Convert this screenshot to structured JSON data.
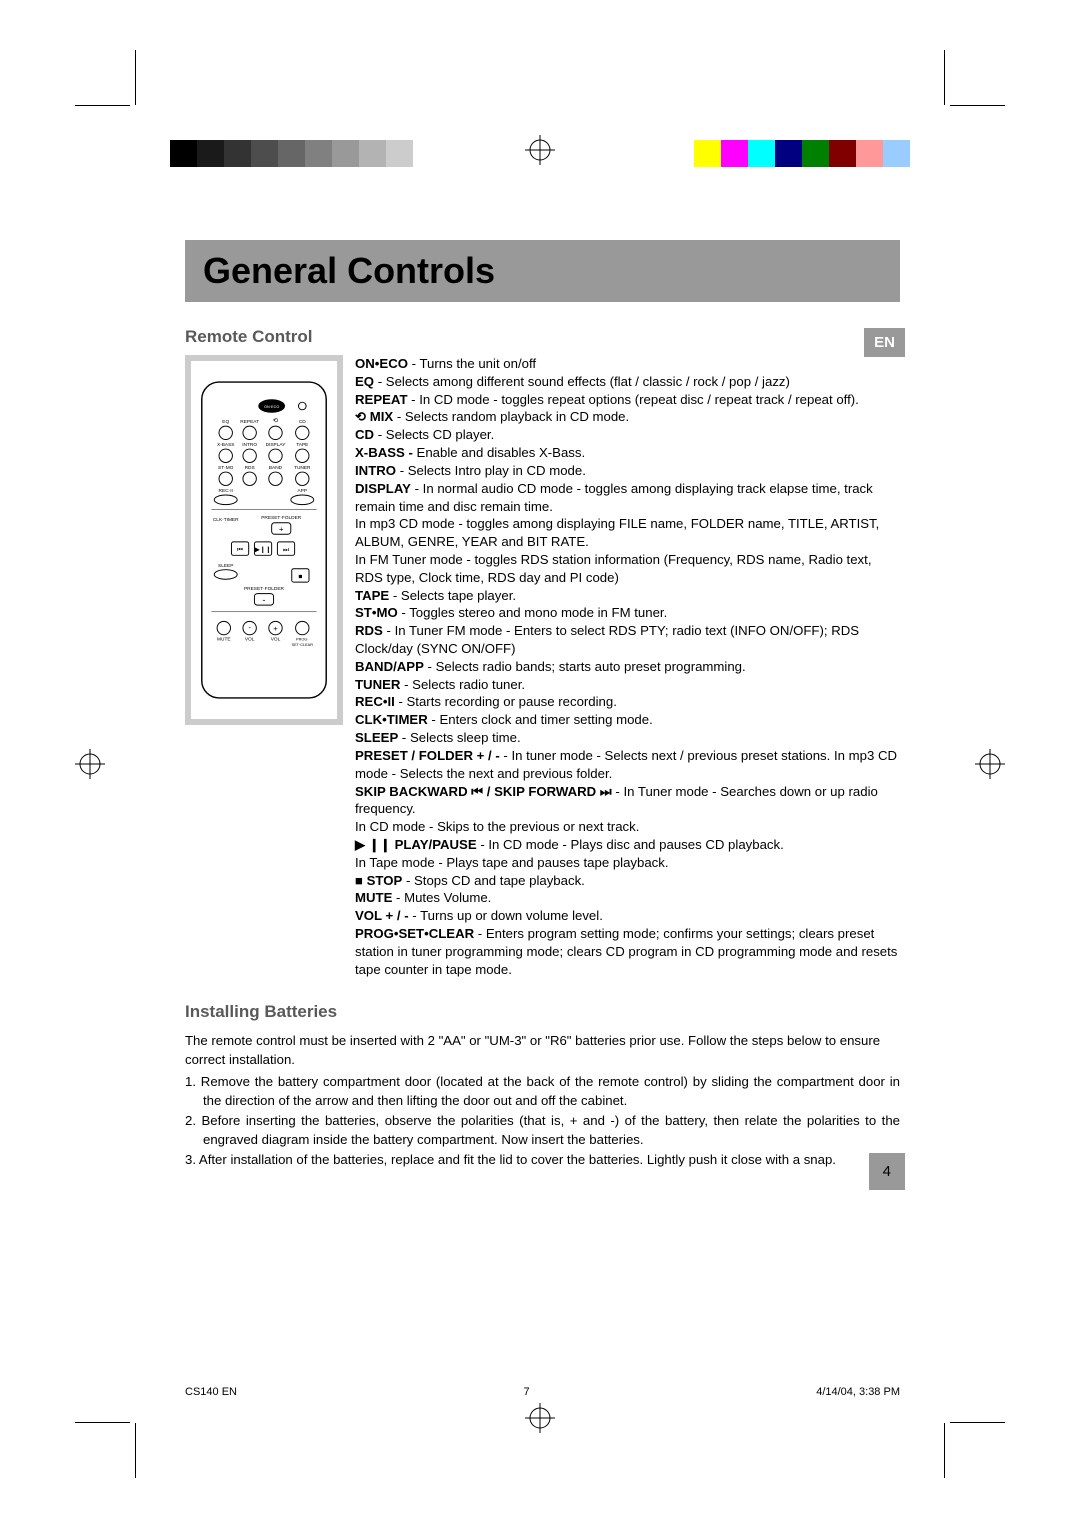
{
  "page": {
    "title": "General Controls",
    "lang_tab": "EN",
    "page_number": "4"
  },
  "colors": {
    "title_bar_bg": "#999999",
    "section_title": "#595959",
    "left_swatches": [
      "#000000",
      "#1a1a1a",
      "#333333",
      "#4d4d4d",
      "#666666",
      "#808080",
      "#999999",
      "#b3b3b3",
      "#cccccc"
    ],
    "right_swatches": [
      "#ffff00",
      "#ff00ff",
      "#00ffff",
      "#000080",
      "#008000",
      "#800000",
      "#ff9999",
      "#99ccff"
    ]
  },
  "sections": {
    "remote": {
      "title": "Remote Control",
      "items": [
        {
          "label": "ON•ECO",
          "text": " - Turns the unit on/off"
        },
        {
          "label": "EQ",
          "text": " - Selects among different sound effects (flat / classic / rock / pop / jazz)"
        },
        {
          "label": "REPEAT",
          "text": " - In CD mode - toggles repeat options (repeat disc / repeat track / repeat off)."
        },
        {
          "label": "⟲ MIX",
          "text": " - Selects random playback in CD mode."
        },
        {
          "label": "CD",
          "text": " - Selects CD player."
        },
        {
          "label": "X-BASS - ",
          "text": "Enable and disables X-Bass."
        },
        {
          "label": "INTRO",
          "text": " - Selects Intro play in CD mode."
        },
        {
          "label": "DISPLAY",
          "text": " - In normal audio CD mode   - toggles among displaying track elapse time, track remain time and disc remain time."
        },
        {
          "label": "",
          "text": "In mp3 CD mode - toggles among displaying FILE name, FOLDER name, TITLE, ARTIST, ALBUM, GENRE, YEAR and BIT RATE."
        },
        {
          "label": "",
          "text": "In FM Tuner mode   - toggles RDS station information (Frequency, RDS name, Radio text, RDS type, Clock time, RDS day and PI code)"
        },
        {
          "label": "TAPE",
          "text": " - Selects tape player."
        },
        {
          "label": "ST•MO",
          "text": " - Toggles stereo and mono mode in FM tuner."
        },
        {
          "label": "RDS",
          "text": " - In Tuner FM mode  - Enters to select RDS PTY; radio text (INFO ON/OFF); RDS Clock/day (SYNC ON/OFF)"
        },
        {
          "label": "BAND/APP",
          "text": " - Selects radio bands; starts auto preset programming."
        },
        {
          "label": "TUNER",
          "text": " - Selects radio tuner."
        },
        {
          "label": "REC•II",
          "text": " - Starts recording or pause recording."
        },
        {
          "label": "CLK•TIMER",
          "text": " - Enters clock and timer setting mode."
        },
        {
          "label": "SLEEP",
          "text": " - Selects sleep time."
        },
        {
          "label": "PRESET / FOLDER + / -",
          "text": " - In tuner mode   - Selects next / previous preset stations. In mp3 CD mode  - Selects the next and previous folder."
        },
        {
          "label": "SKIP BACKWARD ⏮ / SKIP FORWARD ⏭ ",
          "text": " - In Tuner mode  - Searches down or up radio frequency."
        },
        {
          "label": "",
          "text": "In CD mode - Skips to the previous or next track."
        },
        {
          "label": "▶ ❙❙ PLAY/PAUSE",
          "text": " - In CD mode - Plays disc and pauses CD playback."
        },
        {
          "label": "",
          "text": "In Tape mode  - Plays tape and pauses tape playback."
        },
        {
          "label": "■ STOP",
          "text": " - Stops CD and tape playback."
        },
        {
          "label": "MUTE",
          "text": " - Mutes Volume."
        },
        {
          "label": "VOL + / -",
          "text": " - Turns up or down volume level."
        },
        {
          "label": "PROG•SET•CLEAR",
          "text": " - Enters program setting mode; confirms your settings; clears preset station in tuner programming mode; clears CD program in CD programming mode and resets tape counter in tape mode."
        }
      ]
    },
    "batteries": {
      "title": "Installing Batteries",
      "intro": "The remote control must be inserted with 2 \"AA\" or \"UM-3\" or \"R6\" batteries prior use.  Follow the steps below to ensure correct installation.",
      "steps": [
        "1. Remove the battery compartment door (located at the back of the remote control) by sliding the compartment door in the direction of the arrow and then lifting the door out and off the cabinet.",
        "2. Before inserting the batteries, observe the polarities (that is, + and -) of the battery, then relate the polarities to the engraved diagram inside the battery compartment.  Now insert the batteries.",
        "3. After installation of the batteries, replace and fit the lid to cover the batteries.  Lightly push it close with a snap."
      ]
    }
  },
  "remote_labels": {
    "on_eco": "ON·ECO",
    "eq": "EQ",
    "repeat": "REPEAT",
    "cd": "CD",
    "xbass": "X-BASS",
    "intro": "INTRO",
    "display": "DISPLAY",
    "tape": "TAPE",
    "stmo": "ST·MO",
    "rds": "RDS",
    "band": "BAND",
    "tuner": "TUNER",
    "rec": "REC·II",
    "app": "APP",
    "clk": "CLK·TIMER",
    "preset_folder": "PRESET·FOLDER",
    "sleep": "SLEEP",
    "mute": "MUTE",
    "vol": "VOL",
    "prog": "PROG·\nSET·CLEAR"
  },
  "footer": {
    "doc": "CS140 EN",
    "page": "7",
    "date": "4/14/04, 3:38 PM"
  }
}
